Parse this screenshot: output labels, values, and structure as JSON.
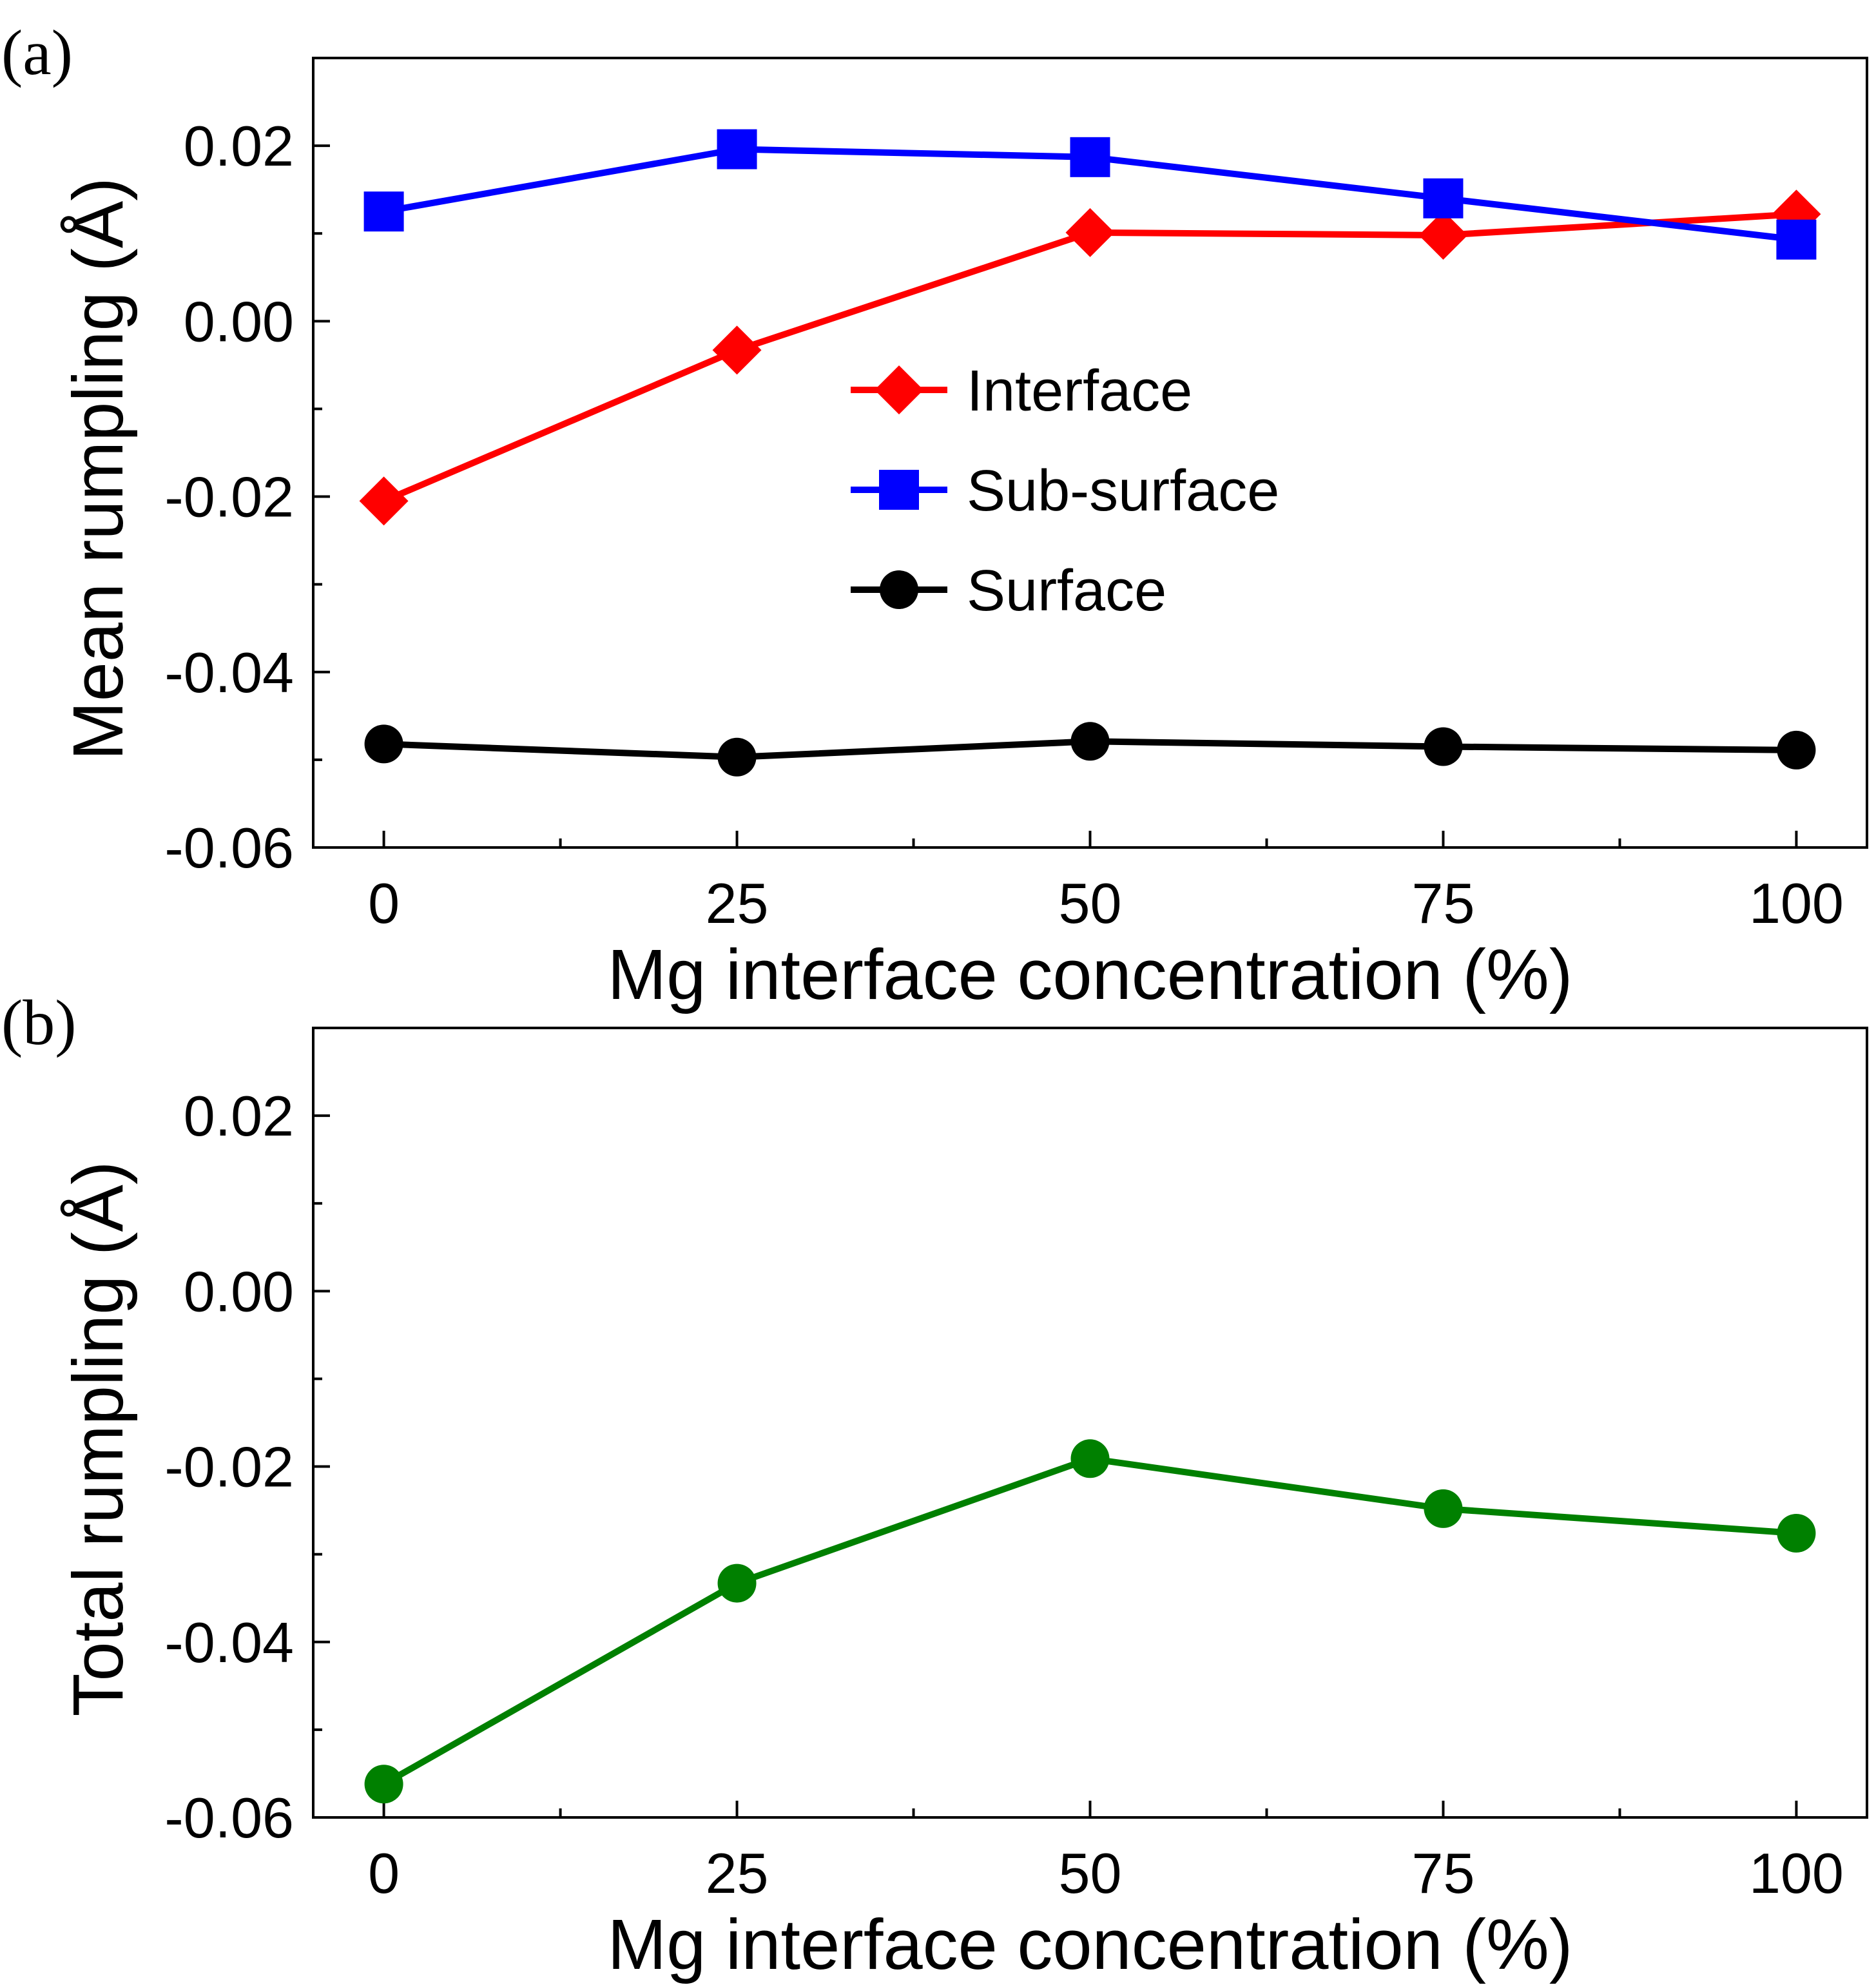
{
  "chart_data": [
    {
      "panel_label": "(a)",
      "type": "line",
      "xlabel": "Mg interface concentration (%)",
      "ylabel": "Mean rumpling (Å)",
      "xlim": [
        -5,
        105
      ],
      "ylim": [
        -0.06,
        0.03
      ],
      "x": [
        0,
        25,
        50,
        75,
        100
      ],
      "xticks": [
        "0",
        "25",
        "50",
        "75",
        "100"
      ],
      "yticks": [
        "0.02",
        "0.00",
        "-0.02",
        "-0.04",
        "-0.06"
      ],
      "legend_position": "center",
      "series": [
        {
          "name": "Interface",
          "color": "#ff0000",
          "marker": "diamond",
          "values": [
            -0.0205,
            -0.0033,
            0.0101,
            0.0098,
            0.0122
          ]
        },
        {
          "name": "Sub-surface",
          "color": "#0000ff",
          "marker": "square",
          "values": [
            0.0125,
            0.0196,
            0.0187,
            0.014,
            0.0093
          ]
        },
        {
          "name": "Surface",
          "color": "#000000",
          "marker": "circle",
          "values": [
            -0.0482,
            -0.0497,
            -0.0479,
            -0.0485,
            -0.0489
          ]
        }
      ]
    },
    {
      "panel_label": "(b)",
      "type": "line",
      "xlabel": "Mg interface concentration (%)",
      "ylabel": "Total rumpling (Å)",
      "xlim": [
        -5,
        105
      ],
      "ylim": [
        -0.06,
        0.03
      ],
      "x": [
        0,
        25,
        50,
        75,
        100
      ],
      "xticks": [
        "0",
        "25",
        "50",
        "75",
        "100"
      ],
      "yticks": [
        "0.02",
        "0.00",
        "-0.02",
        "-0.04",
        "-0.06"
      ],
      "series": [
        {
          "color": "#008000",
          "marker": "circle",
          "values": [
            -0.0562,
            -0.0333,
            -0.0191,
            -0.0248,
            -0.0276
          ]
        }
      ]
    }
  ]
}
